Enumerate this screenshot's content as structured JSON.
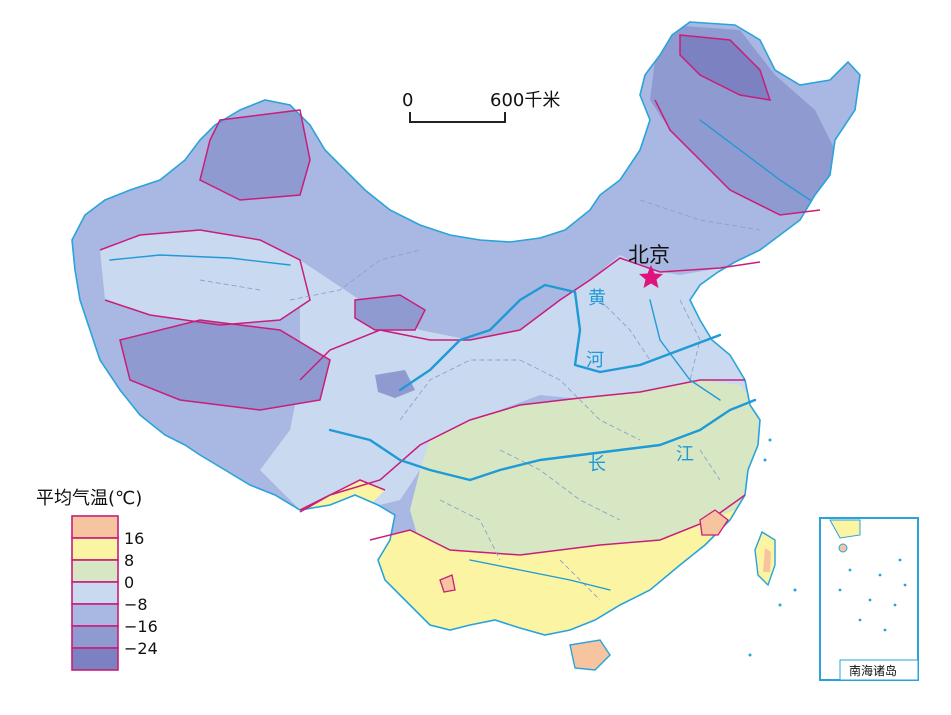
{
  "map": {
    "scale_bar": {
      "start_label": "0",
      "end_label": "600千米"
    },
    "capital": {
      "label": "北京",
      "marker": "star-icon",
      "color": "#e0127b"
    },
    "river_labels": {
      "huanghe_1": "黄",
      "huanghe_2": "河",
      "changjiang_1": "长",
      "changjiang_2": "江"
    },
    "inset_label": "南海诸岛"
  },
  "legend": {
    "title": "平均气温(℃)",
    "entries": [
      {
        "color": "#f7c4a0",
        "label": "16"
      },
      {
        "color": "#fbf5a3",
        "label": "8"
      },
      {
        "color": "#d7e7c3",
        "label": "0"
      },
      {
        "color": "#c9d9f0",
        "label": "−8"
      },
      {
        "color": "#a9b8e2",
        "label": "−16"
      },
      {
        "color": "#8f9ad0",
        "label": "−24"
      },
      {
        "color": "#7c82c1",
        "label": ""
      }
    ],
    "isotherm_color": "#c81e7a"
  },
  "colors": {
    "coastline": "#29a3db",
    "river": "#1f9ad6",
    "province_border": "#8fa0c8"
  }
}
